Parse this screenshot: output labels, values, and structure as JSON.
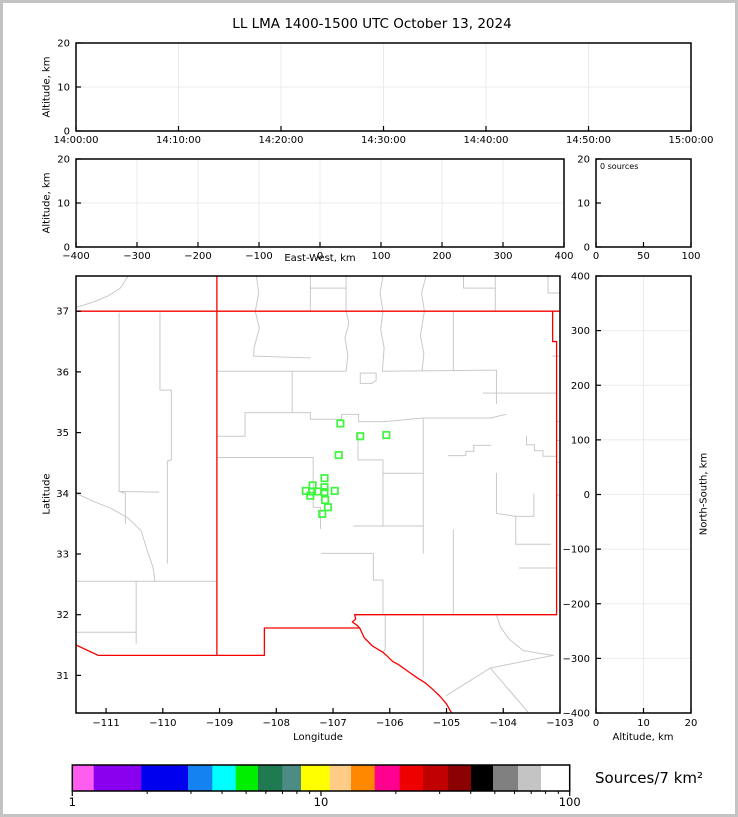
{
  "title": "LL LMA 1400-1500 UTC October 13, 2024",
  "labels": {
    "altitude": "Altitude, km",
    "east_west": "East-West, km",
    "latitude": "Latitude",
    "longitude": "Longitude",
    "north_south": "North-South, km"
  },
  "annotation": {
    "sources": "0 sources"
  },
  "colors": {
    "state_border": "#f80000",
    "county_border": "#c9c9c9",
    "source_marker": "#3cf53c",
    "gridline": "#ebebeb",
    "spine": "#000000"
  },
  "chart_data": [
    {
      "id": "time_height",
      "type": "scatter",
      "xlabel": "",
      "ylabel": "Altitude, km",
      "xticks": [
        "14:00:00",
        "14:10:00",
        "14:20:00",
        "14:30:00",
        "14:40:00",
        "14:50:00",
        "15:00:00"
      ],
      "yticks": [
        "0",
        "10",
        "20"
      ],
      "ylim": [
        0,
        20
      ],
      "grid": true,
      "points": []
    },
    {
      "id": "east_west_height",
      "type": "scatter",
      "xlabel": "East-West, km",
      "ylabel": "Altitude, km",
      "xticks": [
        "−400",
        "−300",
        "−200",
        "−100",
        "0",
        "100",
        "200",
        "300",
        "400"
      ],
      "yticks": [
        "0",
        "10",
        "20"
      ],
      "xlim": [
        -400,
        400
      ],
      "ylim": [
        0,
        20
      ],
      "grid": true,
      "points": []
    },
    {
      "id": "source_histogram",
      "type": "histogram",
      "annotation": "0 sources",
      "xticks": [
        "0",
        "50",
        "100"
      ],
      "yticks": [
        "0",
        "10",
        "20"
      ],
      "xlim": [
        0,
        100
      ],
      "ylim": [
        0,
        20
      ],
      "grid": false,
      "points": []
    },
    {
      "id": "plan_view_map",
      "type": "scatter",
      "xlabel": "Longitude",
      "ylabel": "Latitude",
      "xticks": [
        "−111",
        "−110",
        "−109",
        "−108",
        "−107",
        "−106",
        "−105",
        "−104",
        "−103"
      ],
      "xtick_values": [
        -111,
        -110,
        -109,
        -108,
        -107,
        -106,
        -105,
        -104,
        -103
      ],
      "yticks": [
        "31",
        "32",
        "33",
        "34",
        "35",
        "36",
        "37"
      ],
      "ytick_values": [
        31,
        32,
        33,
        34,
        35,
        36,
        37
      ],
      "xlim": [
        -111.53,
        -103.0
      ],
      "ylim": [
        30.38,
        37.58
      ],
      "grid": false,
      "points": [
        [
          -106.87,
          35.15
        ],
        [
          -106.52,
          34.94
        ],
        [
          -106.06,
          34.96
        ],
        [
          -106.9,
          34.63
        ],
        [
          -107.15,
          34.25
        ],
        [
          -107.36,
          34.13
        ],
        [
          -107.15,
          34.1
        ],
        [
          -107.48,
          34.04
        ],
        [
          -107.37,
          34.03
        ],
        [
          -107.27,
          34.03
        ],
        [
          -107.15,
          34.02
        ],
        [
          -106.97,
          34.04
        ],
        [
          -107.4,
          33.96
        ],
        [
          -107.14,
          33.89
        ],
        [
          -107.09,
          33.77
        ],
        [
          -107.19,
          33.66
        ]
      ]
    },
    {
      "id": "north_south_height",
      "type": "scatter",
      "xlabel": "Altitude, km",
      "ylabel_right": "North-South, km",
      "xticks": [
        "0",
        "10",
        "20"
      ],
      "yticks": [
        "400",
        "300",
        "200",
        "100",
        "0",
        "−100",
        "−200",
        "−300",
        "−400"
      ],
      "xlim": [
        0,
        20
      ],
      "ylim": [
        -400,
        400
      ],
      "grid": true,
      "points": []
    }
  ],
  "map": {
    "state_borders": [
      [
        [
          -111.53,
          37.0
        ],
        [
          -103.0,
          37.0
        ]
      ],
      [
        [
          -109.047,
          37.58
        ],
        [
          -109.047,
          31.33
        ]
      ],
      [
        [
          -103.13,
          37.0
        ],
        [
          -103.13,
          36.5
        ],
        [
          -103.06,
          36.5
        ],
        [
          -103.06,
          32.0
        ]
      ],
      [
        [
          -103.06,
          32.0
        ],
        [
          -106.62,
          32.0
        ],
        [
          -106.6,
          31.93
        ],
        [
          -106.66,
          31.88
        ],
        [
          -106.57,
          31.82
        ],
        [
          -106.53,
          31.78
        ],
        [
          -108.21,
          31.78
        ],
        [
          -108.21,
          31.33
        ],
        [
          -111.14,
          31.33
        ],
        [
          -111.53,
          31.5
        ]
      ],
      [
        [
          -106.53,
          31.78
        ],
        [
          -106.45,
          31.62
        ],
        [
          -106.3,
          31.48
        ],
        [
          -106.12,
          31.38
        ],
        [
          -106.06,
          31.33
        ],
        [
          -105.95,
          31.23
        ],
        [
          -105.85,
          31.18
        ],
        [
          -105.67,
          31.06
        ],
        [
          -105.5,
          30.95
        ],
        [
          -105.38,
          30.88
        ],
        [
          -105.23,
          30.76
        ],
        [
          -105.12,
          30.66
        ],
        [
          -105.0,
          30.53
        ],
        [
          -104.91,
          30.38
        ]
      ]
    ],
    "county_borders": [
      [
        [
          -110.61,
          37.58
        ],
        [
          -110.75,
          37.38
        ],
        [
          -110.95,
          37.26
        ],
        [
          -111.2,
          37.16
        ],
        [
          -111.53,
          37.06
        ]
      ],
      [
        [
          -110.77,
          36.97
        ],
        [
          -110.77,
          34.03
        ]
      ],
      [
        [
          -110.77,
          34.03
        ],
        [
          -110.07,
          34.02
        ]
      ],
      [
        [
          -110.77,
          34.03
        ],
        [
          -110.66,
          34.0
        ],
        [
          -110.66,
          33.5
        ]
      ],
      [
        [
          -110.05,
          36.97
        ],
        [
          -110.05,
          35.7
        ],
        [
          -109.85,
          35.7
        ],
        [
          -109.85,
          34.55
        ],
        [
          -109.92,
          34.53
        ],
        [
          -109.92,
          32.85
        ]
      ],
      [
        [
          -111.53,
          34.0
        ],
        [
          -111.23,
          33.87
        ],
        [
          -110.91,
          33.75
        ],
        [
          -110.61,
          33.59
        ],
        [
          -110.38,
          33.38
        ],
        [
          -110.29,
          33.1
        ],
        [
          -110.17,
          32.77
        ],
        [
          -110.14,
          32.55
        ]
      ],
      [
        [
          -111.53,
          32.55
        ],
        [
          -109.05,
          32.55
        ]
      ],
      [
        [
          -110.47,
          32.55
        ],
        [
          -110.47,
          31.53
        ]
      ],
      [
        [
          -111.53,
          31.71
        ],
        [
          -110.47,
          31.71
        ]
      ],
      [
        [
          -108.35,
          37.58
        ],
        [
          -108.31,
          37.3
        ],
        [
          -108.37,
          37.0
        ]
      ],
      [
        [
          -107.4,
          37.58
        ],
        [
          -107.4,
          37.0
        ]
      ],
      [
        [
          -106.77,
          37.58
        ],
        [
          -106.77,
          37.0
        ]
      ],
      [
        [
          -107.4,
          37.38
        ],
        [
          -106.77,
          37.38
        ]
      ],
      [
        [
          -106.12,
          37.58
        ],
        [
          -106.17,
          37.3
        ],
        [
          -106.12,
          37.0
        ]
      ],
      [
        [
          -105.36,
          37.58
        ],
        [
          -105.44,
          37.3
        ],
        [
          -105.39,
          37.0
        ]
      ],
      [
        [
          -104.7,
          37.58
        ],
        [
          -104.7,
          37.38
        ],
        [
          -104.14,
          37.38
        ]
      ],
      [
        [
          -104.14,
          37.58
        ],
        [
          -104.14,
          37.0
        ]
      ],
      [
        [
          -103.21,
          37.58
        ],
        [
          -103.21,
          37.3
        ],
        [
          -103.0,
          37.3
        ]
      ],
      [
        [
          -109.05,
          36.01
        ],
        [
          -106.77,
          36.01
        ]
      ],
      [
        [
          -108.37,
          37.0
        ],
        [
          -108.3,
          36.72
        ],
        [
          -108.39,
          36.4
        ],
        [
          -108.4,
          36.26
        ],
        [
          -107.4,
          36.23
        ]
      ],
      [
        [
          -106.77,
          37.0
        ],
        [
          -106.72,
          36.8
        ],
        [
          -106.79,
          36.56
        ],
        [
          -106.74,
          36.28
        ],
        [
          -106.77,
          36.01
        ]
      ],
      [
        [
          -106.12,
          37.0
        ],
        [
          -106.16,
          36.7
        ],
        [
          -106.1,
          36.4
        ],
        [
          -106.13,
          36.01
        ]
      ],
      [
        [
          -105.39,
          37.0
        ],
        [
          -105.46,
          36.6
        ],
        [
          -105.4,
          36.3
        ],
        [
          -105.43,
          36.03
        ]
      ],
      [
        [
          -104.88,
          37.0
        ],
        [
          -104.88,
          36.03
        ]
      ],
      [
        [
          -106.13,
          36.01
        ],
        [
          -104.12,
          36.03
        ]
      ],
      [
        [
          -106.52,
          35.98
        ],
        [
          -106.24,
          35.98
        ],
        [
          -106.24,
          35.86
        ],
        [
          -106.32,
          35.81
        ],
        [
          -106.52,
          35.81
        ],
        [
          -106.52,
          35.98
        ]
      ],
      [
        [
          -104.12,
          36.03
        ],
        [
          -104.12,
          35.48
        ]
      ],
      [
        [
          -104.35,
          35.65
        ],
        [
          -103.06,
          35.65
        ]
      ],
      [
        [
          -108.55,
          35.33
        ],
        [
          -107.4,
          35.33
        ]
      ],
      [
        [
          -108.55,
          35.33
        ],
        [
          -108.55,
          34.94
        ],
        [
          -109.05,
          34.94
        ]
      ],
      [
        [
          -107.72,
          36.01
        ],
        [
          -107.72,
          35.33
        ]
      ],
      [
        [
          -107.4,
          35.33
        ],
        [
          -107.4,
          35.22
        ],
        [
          -106.85,
          35.22
        ],
        [
          -106.85,
          35.3
        ],
        [
          -106.55,
          35.3
        ],
        [
          -106.55,
          35.18
        ],
        [
          -106.1,
          35.18
        ],
        [
          -105.41,
          35.24
        ]
      ],
      [
        [
          -105.41,
          35.24
        ],
        [
          -104.23,
          35.24
        ],
        [
          -103.95,
          35.3
        ]
      ],
      [
        [
          -105.41,
          35.24
        ],
        [
          -105.41,
          33.01
        ]
      ],
      [
        [
          -104.22,
          34.79
        ],
        [
          -104.52,
          34.79
        ],
        [
          -104.52,
          34.69
        ],
        [
          -104.66,
          34.69
        ],
        [
          -104.66,
          34.62
        ],
        [
          -104.97,
          34.62
        ]
      ],
      [
        [
          -103.59,
          34.94
        ],
        [
          -103.59,
          34.8
        ],
        [
          -103.45,
          34.8
        ],
        [
          -103.45,
          34.7
        ],
        [
          -103.3,
          34.7
        ],
        [
          -103.3,
          34.61
        ],
        [
          -103.06,
          34.61
        ]
      ],
      [
        [
          -109.05,
          34.59
        ],
        [
          -107.35,
          34.59
        ]
      ],
      [
        [
          -107.35,
          34.59
        ],
        [
          -107.35,
          33.77
        ],
        [
          -107.22,
          33.77
        ],
        [
          -107.22,
          33.42
        ]
      ],
      [
        [
          -106.56,
          34.96
        ],
        [
          -106.56,
          34.55
        ],
        [
          -106.12,
          34.55
        ],
        [
          -106.12,
          34.33
        ],
        [
          -105.41,
          34.33
        ]
      ],
      [
        [
          -106.12,
          34.33
        ],
        [
          -106.12,
          33.46
        ]
      ],
      [
        [
          -106.64,
          33.46
        ],
        [
          -105.41,
          33.46
        ]
      ],
      [
        [
          -107.2,
          33.01
        ],
        [
          -106.29,
          33.01
        ]
      ],
      [
        [
          -106.29,
          33.01
        ],
        [
          -106.29,
          32.57
        ],
        [
          -106.12,
          32.57
        ],
        [
          -106.12,
          32.0
        ]
      ],
      [
        [
          -104.88,
          33.4
        ],
        [
          -104.88,
          32.0
        ]
      ],
      [
        [
          -104.12,
          34.33
        ],
        [
          -104.12,
          33.67
        ],
        [
          -103.78,
          33.62
        ],
        [
          -103.78,
          33.16
        ],
        [
          -103.17,
          33.16
        ]
      ],
      [
        [
          -103.46,
          33.99
        ],
        [
          -103.46,
          33.62
        ],
        [
          -103.78,
          33.62
        ]
      ],
      [
        [
          -103.72,
          32.77
        ],
        [
          -103.06,
          32.77
        ]
      ],
      [
        [
          -106.08,
          32.0
        ],
        [
          -106.08,
          31.43
        ],
        [
          -106.12,
          31.38
        ]
      ],
      [
        [
          -105.41,
          32.0
        ],
        [
          -105.41,
          30.98
        ]
      ],
      [
        [
          -104.12,
          32.0
        ],
        [
          -104.05,
          31.8
        ],
        [
          -103.9,
          31.6
        ],
        [
          -103.65,
          31.41
        ],
        [
          -103.35,
          31.36
        ],
        [
          -103.12,
          31.33
        ]
      ],
      [
        [
          -105.0,
          30.67
        ],
        [
          -104.23,
          31.12
        ]
      ],
      [
        [
          -104.23,
          31.12
        ],
        [
          -103.55,
          30.38
        ]
      ],
      [
        [
          -104.23,
          31.12
        ],
        [
          -103.12,
          31.33
        ]
      ],
      [
        [
          -103.13,
          36.26
        ],
        [
          -103.0,
          36.26
        ]
      ],
      [
        [
          -103.06,
          35.18
        ],
        [
          -103.0,
          35.18
        ]
      ],
      [
        [
          -103.06,
          34.87
        ],
        [
          -103.0,
          34.87
        ]
      ],
      [
        [
          -103.06,
          34.51
        ],
        [
          -103.0,
          34.51
        ]
      ],
      [
        [
          -103.06,
          33.97
        ],
        [
          -103.0,
          33.97
        ]
      ]
    ]
  },
  "colorbar": {
    "label": "Sources/7 km²",
    "scale": "log",
    "tick_labels": [
      "1",
      "10",
      "100"
    ],
    "tick_values": [
      1,
      10,
      100
    ],
    "minor_tick_values": [
      2,
      3,
      4,
      5,
      6,
      7,
      8,
      9,
      20,
      30,
      40,
      50,
      60,
      70,
      80,
      90
    ],
    "segments": [
      {
        "color": "#ff5cf0",
        "w": 21.4
      },
      {
        "color": "#8800ee",
        "w": 47.6
      },
      {
        "color": "#0000ee",
        "w": 46.7
      },
      {
        "color": "#1482f0",
        "w": 24.3
      },
      {
        "color": "#00ffff",
        "w": 23.4
      },
      {
        "color": "#00ee00",
        "w": 22.3
      },
      {
        "color": "#1f7a52",
        "w": 24.3
      },
      {
        "color": "#4d8c85",
        "w": 18.7
      },
      {
        "color": "#ffff00",
        "w": 28.7
      },
      {
        "color": "#ffcc88",
        "w": 21.3
      },
      {
        "color": "#ff8800",
        "w": 23.7
      },
      {
        "color": "#ff0090",
        "w": 25.0
      },
      {
        "color": "#ee0000",
        "w": 23.3
      },
      {
        "color": "#c00000",
        "w": 25.0
      },
      {
        "color": "#8b0000",
        "w": 23.0
      },
      {
        "color": "#000000",
        "w": 22.0
      },
      {
        "color": "#808080",
        "w": 25.0
      },
      {
        "color": "#c4c4c4",
        "w": 23.0
      },
      {
        "color": "#ffffff",
        "w": 28.7
      }
    ]
  }
}
